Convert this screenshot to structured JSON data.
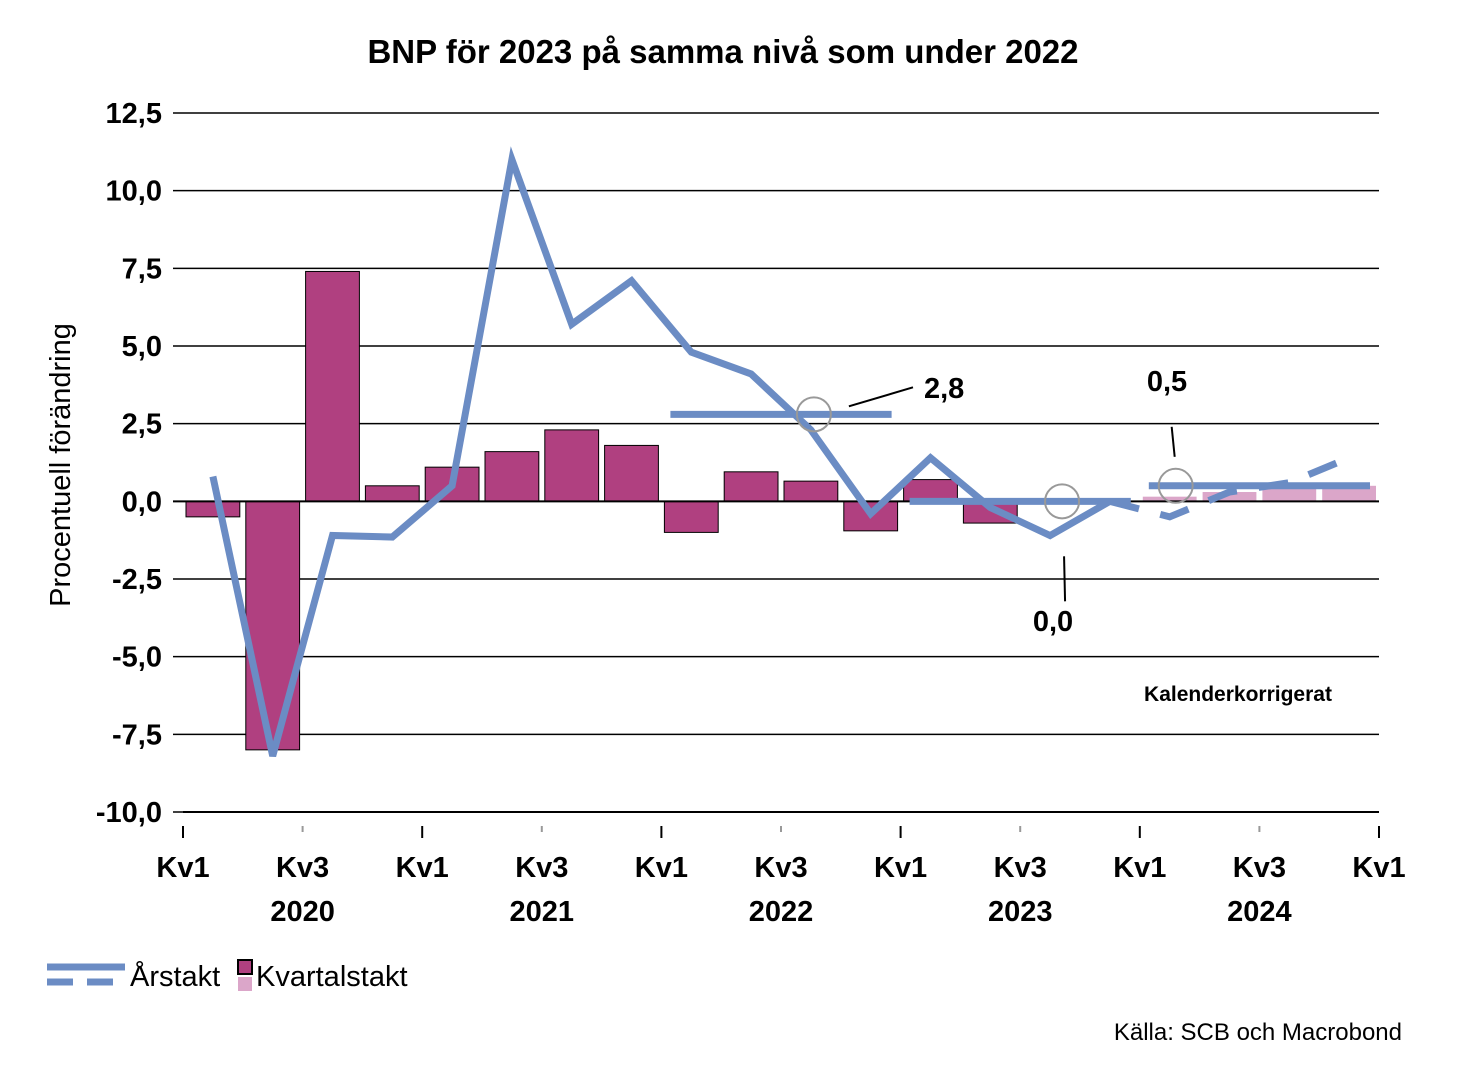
{
  "chart_data": {
    "type": "bar+line",
    "title": "BNP för 2023  på samma nivå som under 2022",
    "ylabel": "Procentuell förändring",
    "ylim": [
      -10,
      12.5
    ],
    "yticks": [
      "12,5",
      "10,0",
      "7,5",
      "5,0",
      "2,5",
      "0,0",
      "-2,5",
      "-5,0",
      "-7,5",
      "-10,0"
    ],
    "ytick_values": [
      12.5,
      10,
      7.5,
      5,
      2.5,
      0,
      -2.5,
      -5,
      -7.5,
      -10
    ],
    "x_tick_labels": [
      "Kv1",
      "Kv3",
      "Kv1",
      "Kv3",
      "Kv1",
      "Kv3",
      "Kv1",
      "Kv3",
      "Kv1",
      "Kv3",
      "Kv1"
    ],
    "year_labels": [
      "2020",
      "2021",
      "2022",
      "2023",
      "2024"
    ],
    "quarters": [
      "2020Q1",
      "2020Q2",
      "2020Q3",
      "2020Q4",
      "2021Q1",
      "2021Q2",
      "2021Q3",
      "2021Q4",
      "2022Q1",
      "2022Q2",
      "2022Q3",
      "2022Q4",
      "2023Q1",
      "2023Q2",
      "2023Q3",
      "2023Q4",
      "2024Q1",
      "2024Q2",
      "2024Q3",
      "2024Q4"
    ],
    "quarterly_growth": [
      -0.5,
      -8.0,
      7.4,
      0.5,
      1.1,
      1.6,
      2.3,
      1.8,
      -1.0,
      0.95,
      0.65,
      -0.95,
      0.7,
      -0.7,
      null,
      null,
      0.15,
      0.3,
      0.4,
      0.5
    ],
    "quarterly_forecast_from_index": 16,
    "annual_growth_line": [
      0.8,
      -8.2,
      -1.1,
      -1.15,
      0.5,
      11.0,
      5.7,
      7.1,
      4.8,
      4.1,
      2.3,
      -0.4,
      1.4,
      -0.2,
      -1.1,
      0.0
    ],
    "annual_growth_forecast": [
      0.0,
      -0.5,
      0.3,
      0.6,
      1.4
    ],
    "annual_averages": [
      {
        "year": "2022",
        "value": 2.8,
        "label": "2,8"
      },
      {
        "year": "2023",
        "value": 0.0,
        "label": "0,0"
      },
      {
        "year": "2024",
        "value": 0.5,
        "label": "0,5"
      }
    ],
    "note": "Kalenderkorrigerat",
    "grid": true,
    "legend_position": "bottom-left"
  },
  "legend": {
    "arstakt_label": "Årstakt",
    "kvartalstakt_label": "Kvartalstakt"
  },
  "source": "Källa: SCB och Macrobond",
  "colors": {
    "line": "#6b8cc4",
    "bar": "#b04080",
    "bar_forecast": "#dba6c9",
    "grid": "#000000"
  }
}
